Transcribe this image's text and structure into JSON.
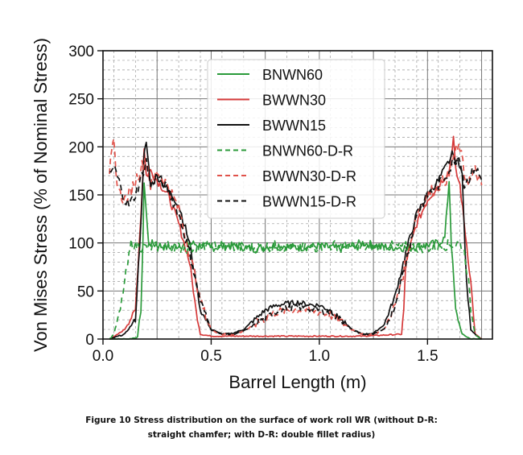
{
  "chart_data": {
    "type": "line",
    "title": "",
    "xlabel": "Barrel Length (m)",
    "ylabel": "Von Mises Stress (% of Nominal Stress)",
    "xlim": [
      0.0,
      1.8
    ],
    "ylim": [
      0,
      300
    ],
    "xticks": [
      0.0,
      0.5,
      1.0,
      1.5
    ],
    "xtick_labels": [
      "0.0",
      "0.5",
      "1.0",
      "1.5"
    ],
    "yticks": [
      0,
      50,
      100,
      150,
      200,
      250,
      300
    ],
    "ytick_labels": [
      "0",
      "50",
      "100",
      "150",
      "200",
      "250",
      "300"
    ],
    "grid": true,
    "legend_position": "top-center",
    "series": [
      {
        "name": "BNWN60",
        "color": "#2a9a3a",
        "dash": "solid",
        "x": [
          0.03,
          0.12,
          0.16,
          0.175,
          0.185,
          0.19,
          0.21,
          0.25,
          0.3,
          0.4,
          0.5,
          0.6,
          0.7,
          0.8,
          0.9,
          1.0,
          1.1,
          1.2,
          1.3,
          1.4,
          1.5,
          1.55,
          1.58,
          1.6,
          1.61,
          1.63,
          1.66,
          1.7,
          1.75
        ],
        "y": [
          0,
          0,
          2,
          30,
          100,
          165,
          100,
          98,
          95,
          100,
          95,
          97,
          94,
          98,
          95,
          97,
          94,
          100,
          96,
          95,
          98,
          100,
          105,
          165,
          100,
          30,
          5,
          0,
          0
        ]
      },
      {
        "name": "BWWN30",
        "color": "#d63a3a",
        "dash": "solid",
        "x": [
          0.03,
          0.05,
          0.1,
          0.15,
          0.18,
          0.19,
          0.2,
          0.22,
          0.25,
          0.3,
          0.35,
          0.4,
          0.43,
          0.45,
          0.5,
          0.6,
          0.8,
          1.0,
          1.2,
          1.38,
          1.39,
          1.4,
          1.45,
          1.5,
          1.55,
          1.6,
          1.62,
          1.63,
          1.65,
          1.7,
          1.72,
          1.75
        ],
        "y": [
          0,
          2,
          10,
          30,
          150,
          200,
          170,
          175,
          165,
          150,
          120,
          80,
          30,
          5,
          3,
          3,
          3,
          3,
          3,
          5,
          30,
          80,
          120,
          145,
          160,
          175,
          210,
          175,
          160,
          60,
          5,
          0
        ]
      },
      {
        "name": "BWWN15",
        "color": "#111111",
        "dash": "solid",
        "x": [
          0.03,
          0.1,
          0.15,
          0.17,
          0.19,
          0.2,
          0.22,
          0.25,
          0.3,
          0.35,
          0.4,
          0.43,
          0.45,
          0.5,
          0.55,
          0.6,
          0.65,
          0.7,
          0.75,
          0.8,
          0.85,
          0.9,
          0.95,
          1.0,
          1.05,
          1.1,
          1.15,
          1.2,
          1.25,
          1.3,
          1.35,
          1.4,
          1.45,
          1.5,
          1.55,
          1.6,
          1.62,
          1.63,
          1.64,
          1.66,
          1.68,
          1.7,
          1.73,
          1.75
        ],
        "y": [
          0,
          5,
          20,
          100,
          190,
          205,
          160,
          170,
          155,
          140,
          100,
          60,
          30,
          10,
          5,
          6,
          10,
          20,
          30,
          35,
          37,
          38,
          36,
          35,
          30,
          20,
          10,
          5,
          6,
          15,
          45,
          90,
          130,
          150,
          165,
          185,
          195,
          180,
          190,
          170,
          60,
          10,
          3,
          0
        ]
      },
      {
        "name": "BNWN60-D-R",
        "color": "#2a9a3a",
        "dash": "7,5",
        "x": [
          0.03,
          0.05,
          0.08,
          0.1,
          0.12,
          0.13,
          0.15,
          0.2,
          0.3,
          0.4,
          0.5,
          0.6,
          0.7,
          0.8,
          0.9,
          1.0,
          1.1,
          1.2,
          1.3,
          1.4,
          1.5,
          1.6,
          1.65,
          1.67,
          1.69,
          1.7,
          1.72,
          1.75
        ],
        "y": [
          0,
          5,
          30,
          60,
          85,
          100,
          97,
          95,
          97,
          94,
          98,
          96,
          95,
          97,
          94,
          96,
          98,
          95,
          97,
          96,
          95,
          98,
          100,
          90,
          60,
          30,
          5,
          0
        ],
        "noise": 4
      },
      {
        "name": "BWWN30-D-R",
        "color": "#e0524a",
        "dash": "7,5",
        "x": [
          0.03,
          0.04,
          0.05,
          0.06,
          0.08,
          0.1,
          0.12,
          0.15,
          0.18,
          0.2,
          0.22,
          0.25,
          0.3,
          0.35,
          0.4,
          0.45,
          0.5,
          0.55,
          0.6,
          0.65,
          0.7,
          0.75,
          0.8,
          0.85,
          0.9,
          0.95,
          1.0,
          1.05,
          1.1,
          1.15,
          1.2,
          1.25,
          1.3,
          1.35,
          1.4,
          1.45,
          1.5,
          1.55,
          1.6,
          1.62,
          1.65,
          1.67,
          1.7,
          1.72,
          1.75
        ],
        "y": [
          175,
          190,
          205,
          170,
          150,
          145,
          150,
          165,
          180,
          190,
          160,
          175,
          160,
          135,
          90,
          40,
          10,
          5,
          5,
          8,
          15,
          22,
          28,
          30,
          31,
          30,
          28,
          25,
          18,
          10,
          5,
          5,
          10,
          35,
          80,
          130,
          150,
          160,
          170,
          190,
          200,
          170,
          165,
          175,
          160
        ],
        "noise": 5
      },
      {
        "name": "BWWN15-D-R",
        "color": "#111111",
        "dash": "7,5",
        "x": [
          0.03,
          0.05,
          0.08,
          0.1,
          0.12,
          0.15,
          0.18,
          0.2,
          0.22,
          0.25,
          0.3,
          0.35,
          0.4,
          0.45,
          0.5,
          0.55,
          0.6,
          0.65,
          0.7,
          0.75,
          0.8,
          0.85,
          0.9,
          0.95,
          1.0,
          1.05,
          1.1,
          1.15,
          1.2,
          1.25,
          1.3,
          1.35,
          1.4,
          1.45,
          1.5,
          1.55,
          1.6,
          1.62,
          1.65,
          1.67,
          1.7,
          1.72,
          1.75
        ],
        "y": [
          170,
          180,
          160,
          145,
          140,
          150,
          170,
          185,
          160,
          170,
          155,
          130,
          90,
          40,
          10,
          5,
          5,
          8,
          15,
          22,
          28,
          32,
          33,
          32,
          30,
          27,
          20,
          10,
          5,
          5,
          10,
          35,
          80,
          130,
          150,
          160,
          175,
          185,
          190,
          160,
          170,
          180,
          165
        ],
        "noise": 4
      }
    ]
  },
  "caption": {
    "line1": "Figure 10 Stress distribution on the surface of work roll WR (without D-R:",
    "line2": "straight chamfer; with D-R: double fillet radius)"
  }
}
